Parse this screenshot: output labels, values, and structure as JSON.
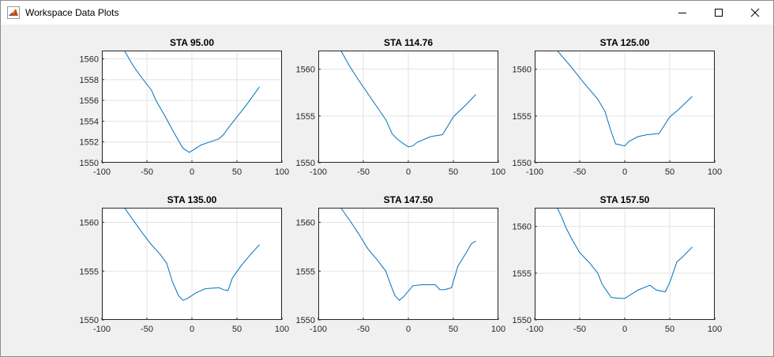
{
  "window": {
    "title": "Workspace Data Plots",
    "icon": "matlab-icon",
    "controls": [
      "minimize-icon",
      "maximize-icon",
      "close-icon"
    ]
  },
  "colors": {
    "line": "#0072bd",
    "grid": "#e3e3e3",
    "axes_bg": "#ffffff",
    "figure_bg": "#f0f0f0"
  },
  "chart_data": [
    {
      "type": "line",
      "title": "STA 95.00",
      "xlabel": "",
      "ylabel": "",
      "xlim": [
        -100,
        100
      ],
      "ylim": [
        1550,
        1560.8
      ],
      "xticks": [
        -100,
        -50,
        0,
        50,
        100
      ],
      "yticks": [
        1550,
        1552,
        1554,
        1556,
        1558,
        1560
      ],
      "grid": true,
      "x": [
        -75,
        -65,
        -55,
        -45,
        -40,
        -30,
        -20,
        -10,
        -3,
        3,
        10,
        20,
        30,
        35,
        40,
        50,
        60,
        70,
        75
      ],
      "y": [
        1560.8,
        1559.3,
        1558.1,
        1557.0,
        1556.0,
        1554.5,
        1552.9,
        1551.4,
        1551.0,
        1551.3,
        1551.7,
        1552.0,
        1552.3,
        1552.7,
        1553.3,
        1554.4,
        1555.5,
        1556.7,
        1557.3
      ]
    },
    {
      "type": "line",
      "title": "STA 114.76",
      "xlabel": "",
      "ylabel": "",
      "xlim": [
        -100,
        100
      ],
      "ylim": [
        1550,
        1562
      ],
      "xticks": [
        -100,
        -50,
        0,
        50,
        100
      ],
      "yticks": [
        1550,
        1555,
        1560
      ],
      "grid": true,
      "x": [
        -75,
        -65,
        -55,
        -45,
        -35,
        -25,
        -18,
        -12,
        -5,
        0,
        5,
        10,
        25,
        38,
        50,
        65,
        75
      ],
      "y": [
        1562,
        1560.3,
        1558.8,
        1557.4,
        1556.0,
        1554.6,
        1553.1,
        1552.5,
        1552.0,
        1551.7,
        1551.8,
        1552.2,
        1552.8,
        1553.0,
        1554.9,
        1556.3,
        1557.3
      ]
    },
    {
      "type": "line",
      "title": "STA 125.00",
      "xlabel": "",
      "ylabel": "",
      "xlim": [
        -100,
        100
      ],
      "ylim": [
        1550,
        1562
      ],
      "xticks": [
        -100,
        -50,
        0,
        50,
        100
      ],
      "yticks": [
        1550,
        1555,
        1560
      ],
      "grid": true,
      "x": [
        -75,
        -60,
        -45,
        -30,
        -22,
        -15,
        -10,
        0,
        5,
        15,
        25,
        38,
        50,
        60,
        75
      ],
      "y": [
        1562,
        1560.3,
        1558.5,
        1556.8,
        1555.5,
        1553.3,
        1552.0,
        1551.8,
        1552.3,
        1552.8,
        1553.0,
        1553.1,
        1554.9,
        1555.7,
        1557.1
      ]
    },
    {
      "type": "line",
      "title": "STA 135.00",
      "xlabel": "",
      "ylabel": "",
      "xlim": [
        -100,
        100
      ],
      "ylim": [
        1550,
        1561.5
      ],
      "xticks": [
        -100,
        -50,
        0,
        50,
        100
      ],
      "yticks": [
        1550,
        1555,
        1560
      ],
      "grid": true,
      "x": [
        -75,
        -65,
        -55,
        -45,
        -35,
        -28,
        -22,
        -15,
        -10,
        -5,
        5,
        15,
        30,
        35,
        40,
        45,
        55,
        65,
        75
      ],
      "y": [
        1561.5,
        1560.2,
        1558.9,
        1557.7,
        1556.7,
        1555.8,
        1554.0,
        1552.5,
        1552.0,
        1552.2,
        1552.8,
        1553.2,
        1553.3,
        1553.1,
        1553.0,
        1554.3,
        1555.6,
        1556.7,
        1557.7
      ]
    },
    {
      "type": "line",
      "title": "STA 147.50",
      "xlabel": "",
      "ylabel": "",
      "xlim": [
        -100,
        100
      ],
      "ylim": [
        1550,
        1561.5
      ],
      "xticks": [
        -100,
        -50,
        0,
        50,
        100
      ],
      "yticks": [
        1550,
        1555,
        1560
      ],
      "grid": true,
      "x": [
        -75,
        -65,
        -55,
        -45,
        -35,
        -25,
        -20,
        -15,
        -10,
        -5,
        5,
        15,
        30,
        35,
        40,
        48,
        55,
        65,
        70,
        75
      ],
      "y": [
        1561.5,
        1560.2,
        1558.8,
        1557.3,
        1556.2,
        1555.0,
        1553.7,
        1552.5,
        1552.0,
        1552.4,
        1553.5,
        1553.6,
        1553.6,
        1553.1,
        1553.1,
        1553.3,
        1555.5,
        1557.0,
        1557.8,
        1558.1
      ]
    },
    {
      "type": "line",
      "title": "STA 157.50",
      "xlabel": "",
      "ylabel": "",
      "xlim": [
        -100,
        100
      ],
      "ylim": [
        1550,
        1562
      ],
      "xticks": [
        -100,
        -50,
        0,
        50,
        100
      ],
      "yticks": [
        1550,
        1555,
        1560
      ],
      "grid": true,
      "x": [
        -75,
        -70,
        -65,
        -58,
        -50,
        -40,
        -30,
        -25,
        -15,
        -5,
        0,
        15,
        28,
        35,
        45,
        50,
        58,
        65,
        75
      ],
      "y": [
        1562,
        1561.0,
        1559.8,
        1558.5,
        1557.2,
        1556.2,
        1555.0,
        1553.8,
        1552.4,
        1552.3,
        1552.3,
        1553.2,
        1553.7,
        1553.2,
        1553.0,
        1554.0,
        1556.2,
        1556.8,
        1557.8
      ]
    }
  ]
}
